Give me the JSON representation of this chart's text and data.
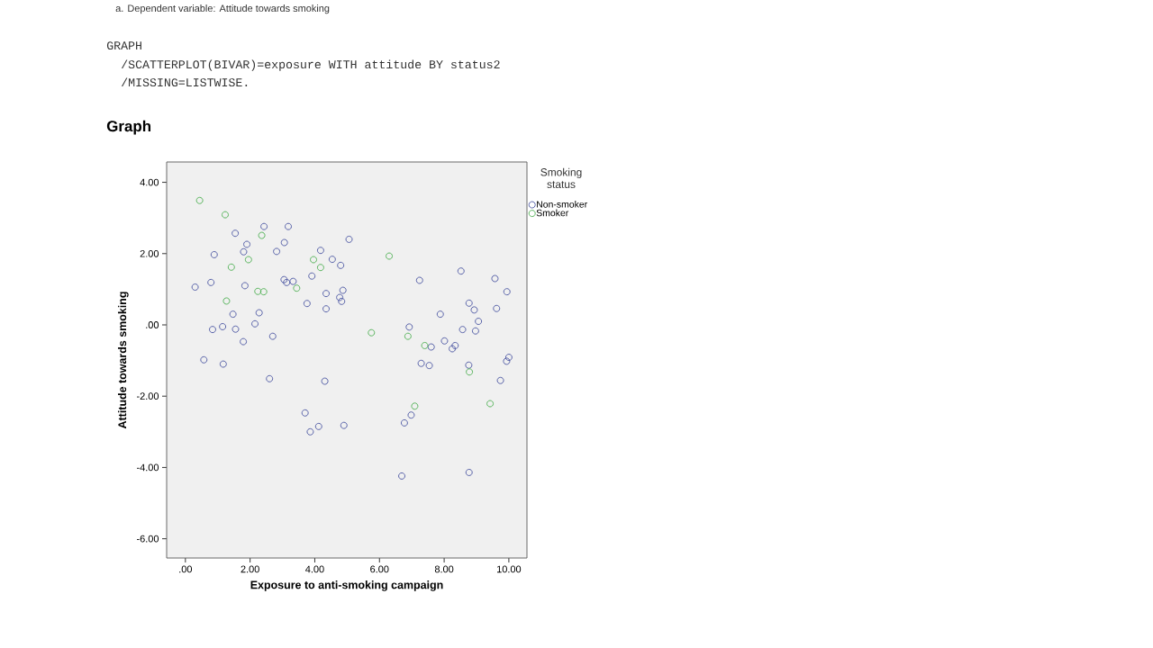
{
  "chart_data": {
    "type": "scatter",
    "title": "Graph",
    "annotations": [
      "a. Dependent variable: Attitude towards smoking",
      "GRAPH",
      "/SCATTERPLOT(BIVAR)=exposure WITH attitude BY status2",
      "/MISSING=LISTWISE."
    ],
    "xlabel": "Exposure to anti-smoking campaign",
    "ylabel": "Attitude towards smoking",
    "legend_title": "Smoking status",
    "xlim": [
      -0.58,
      10.56
    ],
    "ylim": [
      -6.54,
      4.57
    ],
    "xticks": [
      {
        "value": 0,
        "label": ".00"
      },
      {
        "value": 2,
        "label": "2.00"
      },
      {
        "value": 4,
        "label": "4.00"
      },
      {
        "value": 6,
        "label": "6.00"
      },
      {
        "value": 8,
        "label": "8.00"
      },
      {
        "value": 10,
        "label": "10.00"
      }
    ],
    "yticks": [
      {
        "value": -6,
        "label": "-6.00"
      },
      {
        "value": -4,
        "label": "-4.00"
      },
      {
        "value": -2,
        "label": "-2.00"
      },
      {
        "value": 0,
        "label": ".00"
      },
      {
        "value": 2,
        "label": "2.00"
      },
      {
        "value": 4,
        "label": "4.00"
      }
    ],
    "legend": "right",
    "marker": "circle",
    "series": [
      {
        "name": "Non-smoker",
        "color": "#4a55a2",
        "x": [
          0.3,
          0.57,
          0.79,
          0.84,
          0.89,
          1.15,
          1.17,
          1.47,
          1.54,
          1.55,
          1.79,
          1.8,
          1.84,
          1.9,
          2.15,
          2.28,
          2.43,
          2.6,
          2.7,
          2.82,
          3.05,
          3.06,
          3.13,
          3.18,
          3.33,
          3.7,
          3.76,
          3.86,
          3.91,
          4.12,
          4.18,
          4.31,
          4.35,
          4.35,
          4.54,
          4.77,
          4.8,
          4.83,
          4.87,
          4.9,
          5.06,
          6.69,
          6.77,
          6.92,
          6.98,
          7.24,
          7.29,
          7.54,
          7.6,
          7.88,
          8.01,
          8.25,
          8.34,
          8.52,
          8.57,
          8.76,
          8.77,
          8.77,
          8.93,
          8.97,
          9.06,
          9.57,
          9.62,
          9.74,
          9.93,
          9.94,
          10.0
        ],
        "values": [
          1.06,
          -0.98,
          1.19,
          -0.13,
          1.97,
          -0.05,
          -1.1,
          0.3,
          2.57,
          -0.12,
          -0.47,
          2.05,
          1.1,
          2.26,
          0.03,
          0.34,
          2.76,
          -1.51,
          -0.32,
          2.06,
          1.27,
          2.31,
          1.19,
          2.76,
          1.22,
          -2.47,
          0.6,
          -3.0,
          1.37,
          -2.85,
          2.09,
          -1.58,
          0.88,
          0.45,
          1.84,
          0.77,
          1.67,
          0.66,
          0.97,
          -2.82,
          2.4,
          -4.24,
          -2.75,
          -0.06,
          -2.53,
          1.25,
          -1.08,
          -1.14,
          -0.62,
          0.3,
          -0.45,
          -0.67,
          -0.58,
          1.51,
          -0.13,
          -1.13,
          0.61,
          -4.14,
          0.42,
          -0.17,
          0.1,
          1.3,
          0.46,
          -1.56,
          -1.02,
          0.93,
          -0.91
        ]
      },
      {
        "name": "Smoker",
        "color": "#4caf50",
        "x": [
          0.44,
          1.23,
          1.27,
          1.42,
          1.95,
          2.24,
          2.36,
          2.42,
          3.44,
          3.96,
          4.18,
          5.75,
          6.3,
          6.88,
          7.09,
          7.4,
          8.78,
          9.42
        ],
        "values": [
          3.49,
          3.09,
          0.67,
          1.62,
          1.83,
          0.94,
          2.51,
          0.93,
          1.03,
          1.83,
          1.61,
          -0.22,
          1.93,
          -0.32,
          -2.28,
          -0.58,
          -1.32,
          -2.21
        ]
      }
    ]
  }
}
